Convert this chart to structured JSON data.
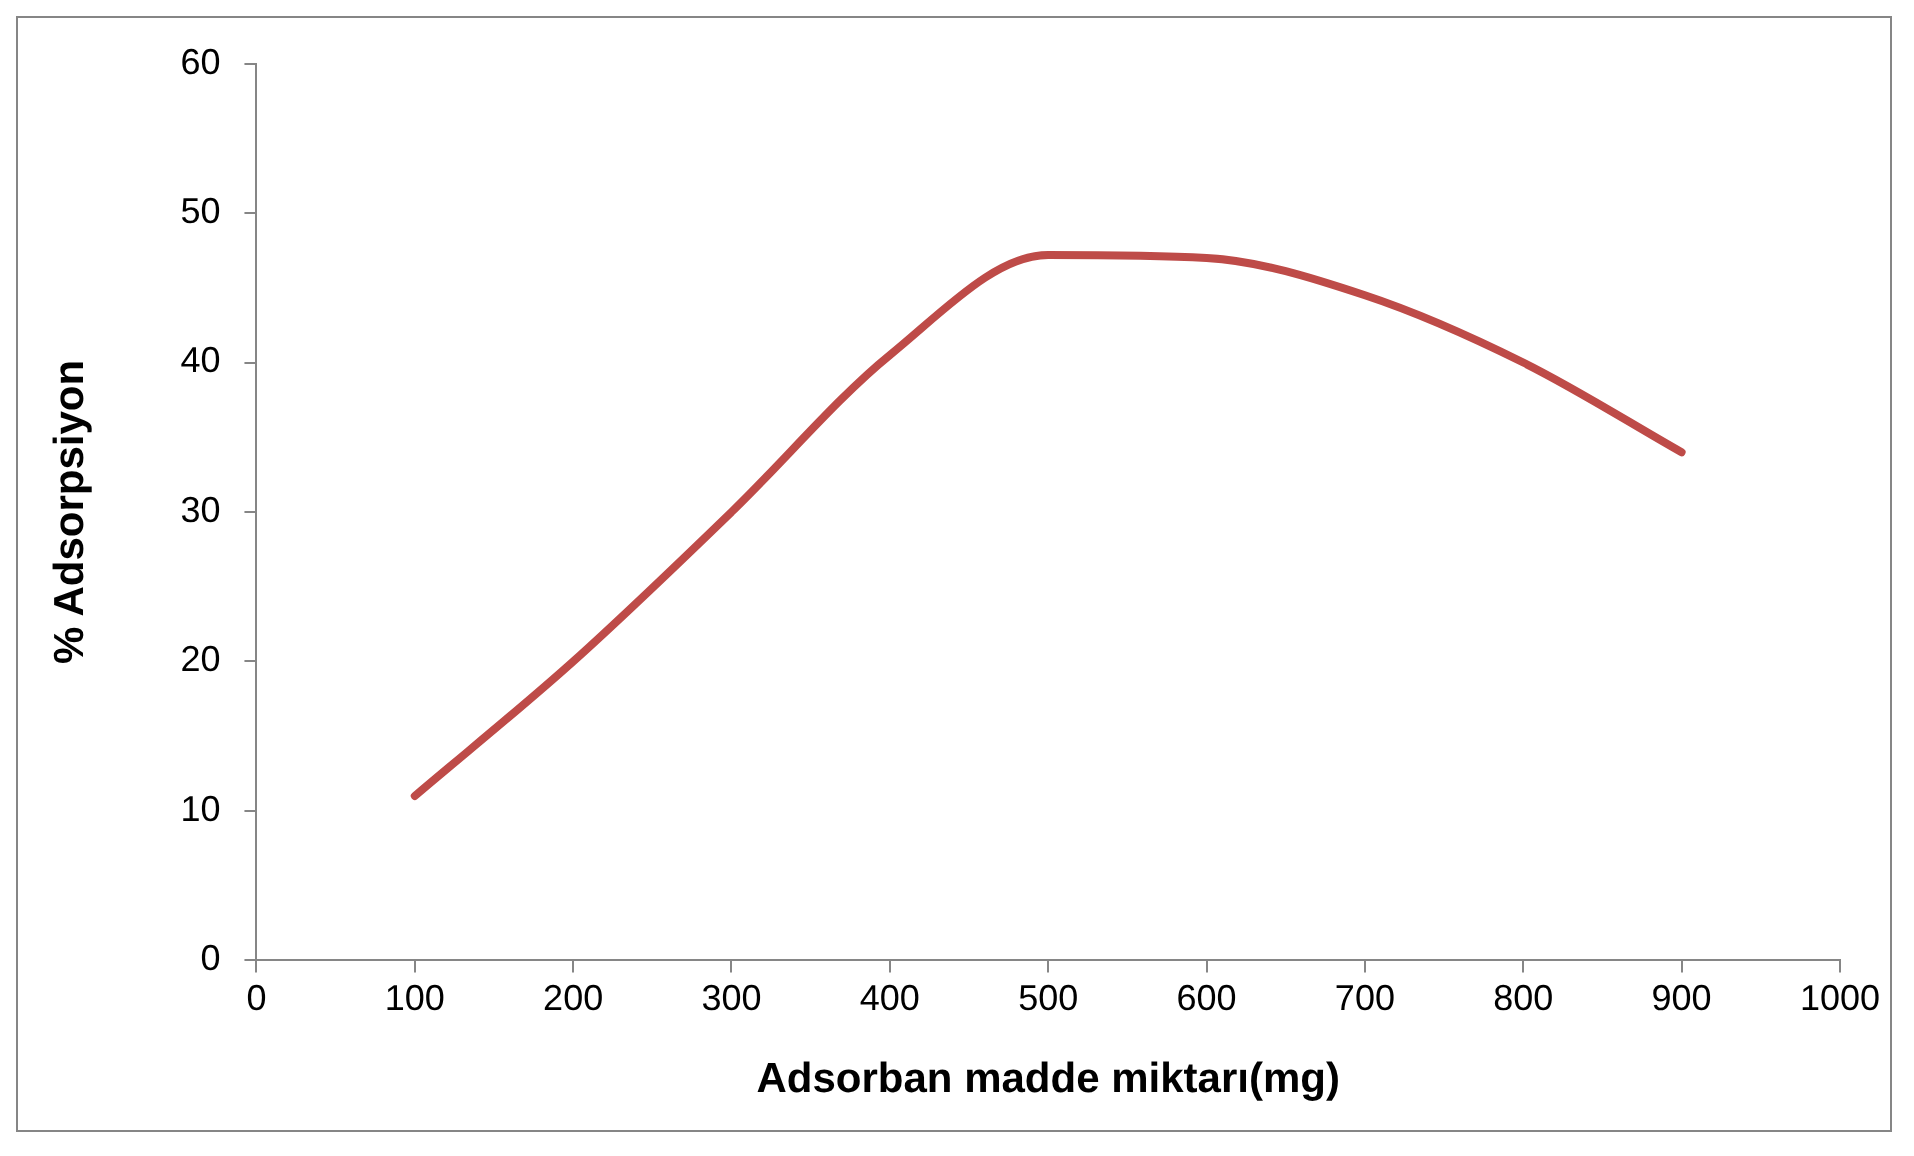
{
  "chart_data": {
    "type": "line",
    "xlabel": "Adsorban madde miktarı(mg)",
    "ylabel": "% Adsorpsiyon",
    "x": [
      100,
      200,
      300,
      400,
      500,
      600,
      700,
      800,
      900
    ],
    "series": [
      {
        "color": "#be4b48",
        "values": [
          11,
          20,
          30,
          40.5,
          47.2,
          47,
          44.5,
          40,
          34
        ]
      }
    ],
    "xlim": [
      0,
      1000
    ],
    "xticks": [
      0,
      100,
      200,
      300,
      400,
      500,
      600,
      700,
      800,
      900,
      1000
    ],
    "ylim": [
      0,
      60
    ],
    "yticks": [
      0,
      10,
      20,
      30,
      40,
      50,
      60
    ],
    "grid": false,
    "legend": false,
    "marker": "none",
    "line_style": "solid"
  }
}
